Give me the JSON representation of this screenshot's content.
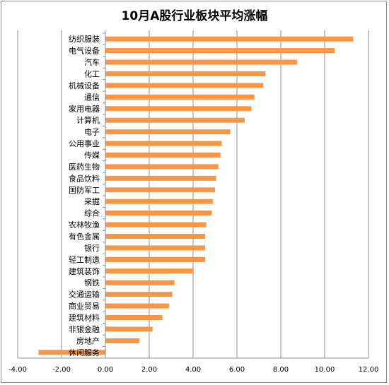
{
  "chart_data": {
    "type": "bar",
    "orientation": "horizontal",
    "title": "10月A股行业板块平均涨幅",
    "categories": [
      "纺织服装",
      "电气设备",
      "汽车",
      "化工",
      "机械设备",
      "通信",
      "家用电器",
      "计算机",
      "电子",
      "公用事业",
      "传媒",
      "医药生物",
      "食品饮料",
      "国防军工",
      "采掘",
      "综合",
      "农林牧渔",
      "有色金属",
      "银行",
      "轻工制造",
      "建筑装饰",
      "钢铁",
      "交通运输",
      "商业贸易",
      "建筑材料",
      "非银金融",
      "房地产",
      "休闲服务"
    ],
    "values": [
      11.3,
      10.45,
      8.75,
      7.3,
      7.2,
      6.8,
      6.65,
      6.35,
      5.7,
      5.3,
      5.25,
      5.15,
      5.05,
      5.0,
      4.9,
      4.85,
      4.6,
      4.55,
      4.55,
      4.55,
      4.0,
      3.15,
      3.05,
      2.9,
      2.6,
      2.15,
      1.55,
      -3.05
    ],
    "xlim": [
      -4,
      12
    ],
    "xticks": [
      "-4.00",
      "-2.00",
      "0.00",
      "2.00",
      "4.00",
      "6.00",
      "8.00",
      "10.00",
      "12.00"
    ],
    "grid": true,
    "bar_color": "#f79646"
  }
}
